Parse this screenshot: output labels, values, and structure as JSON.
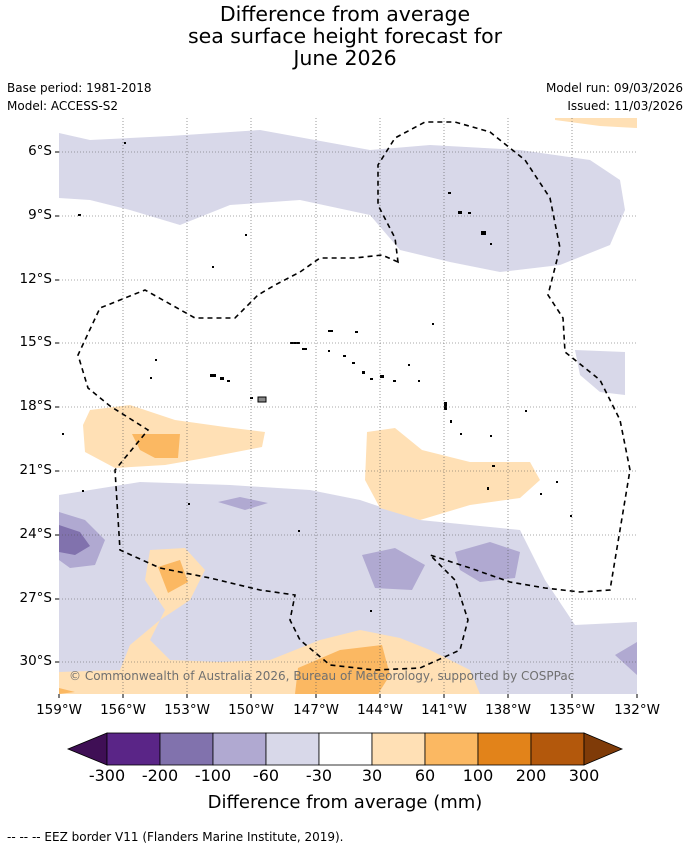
{
  "title": {
    "line1": "Difference from average",
    "line2": "sea surface height forecast for",
    "line3": "June 2026"
  },
  "info": {
    "base_period": "Base period: 1981-2018",
    "model": "Model: ACCESS-S2",
    "model_run": "Model run: 09/03/2026",
    "issued": "Issued: 11/03/2026"
  },
  "axes": {
    "lat_labels": [
      "6°S",
      "9°S",
      "12°S",
      "15°S",
      "18°S",
      "21°S",
      "24°S",
      "27°S",
      "30°S"
    ],
    "lon_labels": [
      "159°W",
      "156°W",
      "153°W",
      "150°W",
      "147°W",
      "144°W",
      "141°W",
      "138°W",
      "135°W",
      "132°W"
    ]
  },
  "legend": {
    "ticks": [
      "-300",
      "-200",
      "-100",
      "-60",
      "-30",
      "30",
      "60",
      "100",
      "200",
      "300"
    ],
    "title": "Difference from average (mm)",
    "colors": [
      "#3f0f55",
      "#5a2587",
      "#8172ad",
      "#b0a9d1",
      "#d8d8e9",
      "#ffffff",
      "#ffe0b5",
      "#fbb862",
      "#e2831a",
      "#b3580c",
      "#7f3b08"
    ]
  },
  "copyright": "© Commonwealth of Australia 2026, Bureau of Meteorology, supported by COSPPac",
  "footnote": "--  --  -- EEZ border V11 (Flanders Marine Institute, 2019)."
}
